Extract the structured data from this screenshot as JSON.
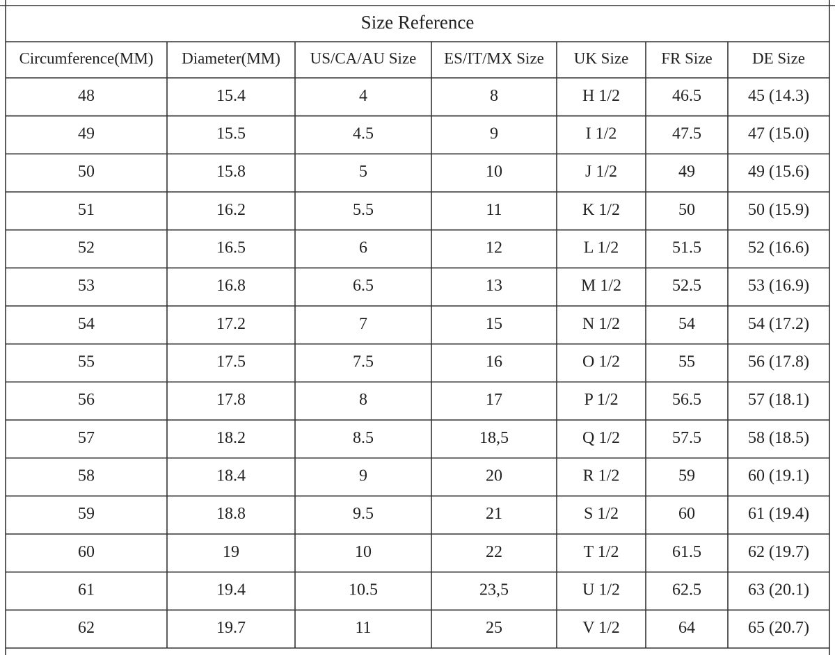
{
  "table": {
    "title": "Size Reference",
    "columns": [
      "Circumference(MM)",
      "Diameter(MM)",
      "US/CA/AU Size",
      "ES/IT/MX Size",
      "UK Size",
      "FR Size",
      "DE Size"
    ],
    "rows": [
      [
        "48",
        "15.4",
        "4",
        "8",
        "H 1/2",
        "46.5",
        "45 (14.3)"
      ],
      [
        "49",
        "15.5",
        "4.5",
        "9",
        "I 1/2",
        "47.5",
        "47 (15.0)"
      ],
      [
        "50",
        "15.8",
        "5",
        "10",
        "J 1/2",
        "49",
        "49 (15.6)"
      ],
      [
        "51",
        "16.2",
        "5.5",
        "11",
        "K 1/2",
        "50",
        "50 (15.9)"
      ],
      [
        "52",
        "16.5",
        "6",
        "12",
        "L 1/2",
        "51.5",
        "52 (16.6)"
      ],
      [
        "53",
        "16.8",
        "6.5",
        "13",
        "M 1/2",
        "52.5",
        "53 (16.9)"
      ],
      [
        "54",
        "17.2",
        "7",
        "15",
        "N 1/2",
        "54",
        "54 (17.2)"
      ],
      [
        "55",
        "17.5",
        "7.5",
        "16",
        "O 1/2",
        "55",
        "56 (17.8)"
      ],
      [
        "56",
        "17.8",
        "8",
        "17",
        "P 1/2",
        "56.5",
        "57 (18.1)"
      ],
      [
        "57",
        "18.2",
        "8.5",
        "18,5",
        "Q 1/2",
        "57.5",
        "58 (18.5)"
      ],
      [
        "58",
        "18.4",
        "9",
        "20",
        "R 1/2",
        "59",
        "60 (19.1)"
      ],
      [
        "59",
        "18.8",
        "9.5",
        "21",
        "S 1/2",
        "60",
        "61 (19.4)"
      ],
      [
        "60",
        "19",
        "10",
        "22",
        "T 1/2",
        "61.5",
        "62 (19.7)"
      ],
      [
        "61",
        "19.4",
        "10.5",
        "23,5",
        "U 1/2",
        "62.5",
        "63 (20.1)"
      ],
      [
        "62",
        "19.7",
        "11",
        "25",
        "V 1/2",
        "64",
        "65 (20.7)"
      ]
    ]
  }
}
